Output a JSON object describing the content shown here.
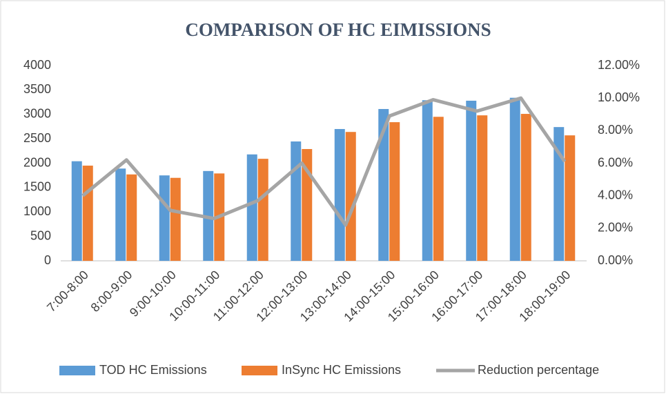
{
  "chart_data": {
    "type": "bar-line",
    "title": "COMPARISON OF HC EIMISSIONS",
    "categories": [
      "7:00-8:00",
      "8:00-9:00",
      "9:00-10:00",
      "10:00-11:00",
      "11:00-12:00",
      "12:00-13:00",
      "13:00-14:00",
      "14:00-15:00",
      "15:00-16:00",
      "16:00-17:00",
      "17:00-18:00",
      "18:00-19:00"
    ],
    "series": [
      {
        "name": "TOD HC Emissions",
        "color": "#5b9bd5",
        "type": "bar",
        "values": [
          2040,
          1890,
          1750,
          1840,
          2180,
          2445,
          2700,
          3110,
          3290,
          3280,
          3340,
          2740
        ]
      },
      {
        "name": "InSync HC Emissions",
        "color": "#ed7d31",
        "type": "bar",
        "values": [
          1950,
          1770,
          1700,
          1790,
          2090,
          2290,
          2640,
          2840,
          2950,
          2980,
          3010,
          2570
        ]
      },
      {
        "name": "Reduction percentage",
        "color": "#a5a5a5",
        "type": "line",
        "axis": "y2",
        "values": [
          4.0,
          6.2,
          3.1,
          2.6,
          3.7,
          6.0,
          2.2,
          8.9,
          9.9,
          9.2,
          10.0,
          6.1
        ]
      }
    ],
    "ylim": [
      0,
      4000
    ],
    "yticks": [
      0,
      500,
      1000,
      1500,
      2000,
      2500,
      3000,
      3500,
      4000
    ],
    "y2lim": [
      0,
      12
    ],
    "y2ticks": [
      {
        "value": 0,
        "label": "0.00%"
      },
      {
        "value": 2,
        "label": "2.00%"
      },
      {
        "value": 4,
        "label": "4.00%"
      },
      {
        "value": 6,
        "label": "6.00%"
      },
      {
        "value": 8,
        "label": "8.00%"
      },
      {
        "value": 10,
        "label": "10.00%"
      },
      {
        "value": 12,
        "label": "12.00%"
      }
    ],
    "grid": false,
    "legend": "bottom"
  }
}
